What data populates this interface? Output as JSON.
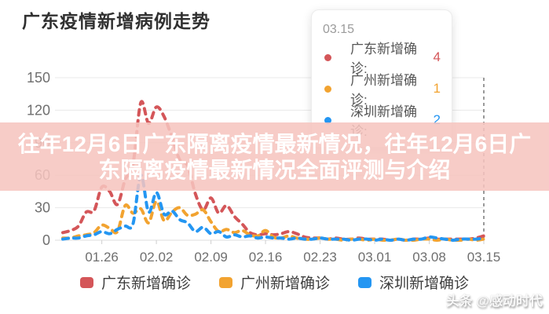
{
  "title": "广东疫情新增病例走势",
  "banner": {
    "line1": "往年12月6日广东隔离疫情最新情况，往年12月6日广",
    "line2": "东隔离疫情最新情况全面评测与介绍",
    "bg": "rgba(246,196,191,0.87)"
  },
  "tooltip": {
    "date": "03.15",
    "items": [
      {
        "label": "广东新增确诊:",
        "value": "4"
      },
      {
        "label": "广州新增确诊:",
        "value": "1"
      },
      {
        "label": "深圳新增确诊:",
        "value": "2"
      }
    ]
  },
  "legend": {
    "items": [
      {
        "label": "广东新增确诊"
      },
      {
        "label": "广州新增确诊"
      },
      {
        "label": "深圳新增确诊"
      }
    ]
  },
  "watermark": "头条 @感动时代",
  "colors": {
    "guangdong": "#d45659",
    "guangzhou": "#f2a330",
    "shenzhen": "#2496f2",
    "grid": "#e9e9e9",
    "axis_line": "#dcdcdc",
    "axis_label": "#6f6f6f",
    "marker_line": "#787878"
  },
  "chart_data": {
    "type": "line",
    "title": "广东疫情新增病例走势",
    "style": "dashed, smoothed, no point markers",
    "legend_position": "bottom",
    "grid": true,
    "ylim": [
      0,
      150
    ],
    "y_ticks": [
      0,
      30,
      60,
      90,
      120,
      150
    ],
    "x_tick_labels": [
      "01.26",
      "02.02",
      "02.09",
      "02.16",
      "02.23",
      "03.01",
      "03.08",
      "03.15"
    ],
    "x_tick_indices": [
      5,
      12,
      19,
      26,
      33,
      40,
      47,
      54
    ],
    "marker_index": 54,
    "x": [
      "01.21",
      "01.22",
      "01.23",
      "01.24",
      "01.25",
      "01.26",
      "01.27",
      "01.28",
      "01.29",
      "01.30",
      "01.31",
      "02.01",
      "02.02",
      "02.03",
      "02.04",
      "02.05",
      "02.06",
      "02.07",
      "02.08",
      "02.09",
      "02.10",
      "02.11",
      "02.12",
      "02.13",
      "02.14",
      "02.15",
      "02.16",
      "02.17",
      "02.18",
      "02.19",
      "02.20",
      "02.21",
      "02.22",
      "02.23",
      "02.24",
      "02.25",
      "02.26",
      "02.27",
      "02.28",
      "02.29",
      "03.01",
      "03.02",
      "03.03",
      "03.04",
      "03.05",
      "03.06",
      "03.07",
      "03.08",
      "03.09",
      "03.10",
      "03.11",
      "03.12",
      "03.13",
      "03.14",
      "03.15"
    ],
    "series": [
      {
        "key": "guangdong",
        "name": "广东新增确诊",
        "color": "#d45659",
        "values": [
          7,
          9,
          13,
          26,
          27,
          49,
          45,
          33,
          56,
          70,
          127,
          108,
          123,
          114,
          95,
          74,
          69,
          43,
          28,
          39,
          25,
          32,
          22,
          15,
          7,
          5,
          6,
          5,
          6,
          8,
          6,
          3,
          2,
          2,
          1,
          2,
          1,
          1,
          2,
          1,
          1,
          1,
          0,
          1,
          0,
          1,
          1,
          2,
          1,
          1,
          1,
          1,
          1,
          2,
          4
        ]
      },
      {
        "key": "guangzhou",
        "name": "广州新增确诊",
        "color": "#f2a330",
        "values": [
          2,
          2,
          4,
          5,
          7,
          14,
          11,
          8,
          32,
          25,
          29,
          16,
          36,
          18,
          26,
          30,
          23,
          24,
          28,
          17,
          8,
          10,
          7,
          9,
          5,
          4,
          9,
          3,
          2,
          4,
          2,
          1,
          1,
          2,
          1,
          1,
          0,
          1,
          1,
          0,
          1,
          0,
          0,
          1,
          0,
          0,
          1,
          1,
          0,
          1,
          0,
          0,
          1,
          0,
          1
        ]
      },
      {
        "key": "shenzhen",
        "name": "深圳新增确诊",
        "color": "#2496f2",
        "values": [
          1,
          2,
          2,
          4,
          5,
          8,
          6,
          10,
          13,
          15,
          60,
          26,
          44,
          24,
          27,
          19,
          16,
          8,
          12,
          6,
          8,
          3,
          5,
          3,
          4,
          2,
          3,
          2,
          2,
          1,
          2,
          1,
          1,
          2,
          1,
          1,
          1,
          0,
          1,
          1,
          0,
          1,
          0,
          1,
          0,
          1,
          1,
          3,
          2,
          1,
          0,
          1,
          1,
          1,
          2
        ]
      }
    ]
  }
}
